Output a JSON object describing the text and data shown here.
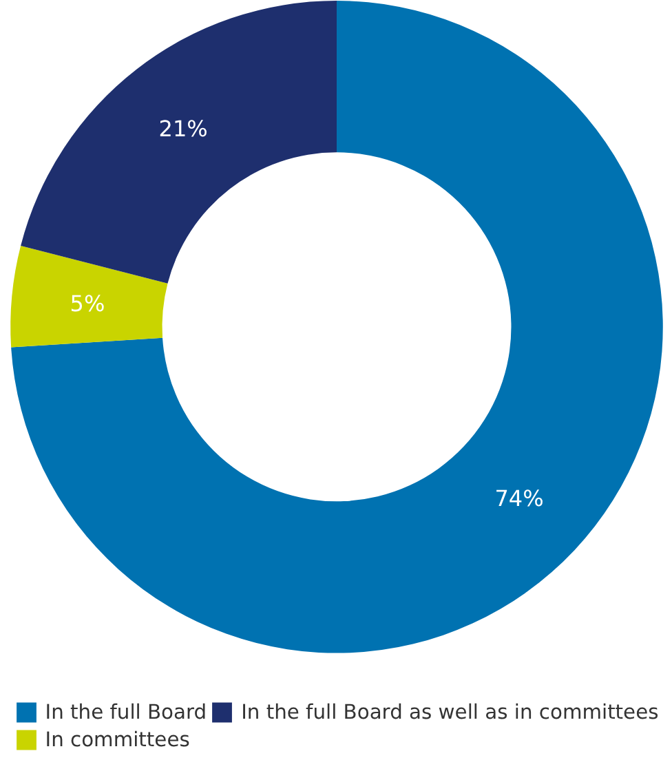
{
  "chart_data": {
    "type": "donut",
    "categories": [
      "In the full Board",
      "In committees",
      "In the full Board as well as in committees"
    ],
    "values": [
      74,
      5,
      21
    ],
    "colors": [
      "#0072b1",
      "#c9d400",
      "#1e2f6e"
    ],
    "value_labels": [
      "74%",
      "5%",
      "21%"
    ],
    "legend": "bottom"
  }
}
